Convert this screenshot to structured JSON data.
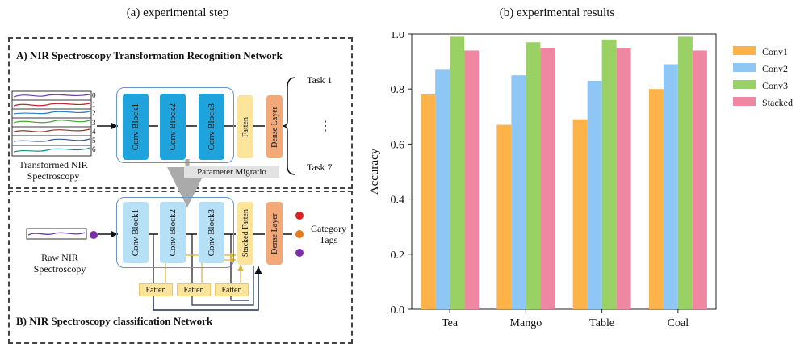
{
  "left": {
    "title": "(a) experimental step",
    "section_a": "A) NIR Spectroscopy Transformation Recognition Network",
    "section_b": "B) NIR Spectroscopy classification Network",
    "input_a": "Transformed NIR Spectroscopy",
    "input_b": "Raw NIR Spectroscopy",
    "channels": [
      "0",
      "1",
      "2",
      "3",
      "4",
      "5",
      "6"
    ],
    "blocks": [
      "Conv Block1",
      "Conv Block2",
      "Conv Block3"
    ],
    "fatten": "Fatten",
    "stacked_fatten": "Stacked Fatten",
    "dense": "Dense Layer",
    "task_first": "Task 1",
    "task_dots": "⋮",
    "task_last": "Task 7",
    "migration": "Parameter Migratio",
    "output_b": "Category Tags"
  },
  "right": {
    "title": "(b) experimental results"
  },
  "chart_data": {
    "type": "bar",
    "categories": [
      "Tea",
      "Mango",
      "Table",
      "Coal"
    ],
    "series": [
      {
        "name": "Conv1",
        "values": [
          0.78,
          0.67,
          0.69,
          0.8
        ],
        "color": "#fdb347"
      },
      {
        "name": "Conv2",
        "values": [
          0.87,
          0.85,
          0.83,
          0.89
        ],
        "color": "#8ec7f5"
      },
      {
        "name": "Conv3",
        "values": [
          0.99,
          0.97,
          0.98,
          0.99
        ],
        "color": "#9ad164"
      },
      {
        "name": "Stacked",
        "values": [
          0.94,
          0.95,
          0.95,
          0.94
        ],
        "color": "#ef86a2"
      }
    ],
    "ylabel": "Accuracy",
    "xlabel": "",
    "ylim": [
      0.0,
      1.0
    ],
    "yticks": [
      "0.0",
      "0.2",
      "0.4",
      "0.6",
      "0.8",
      "1.0"
    ],
    "legend": "right"
  }
}
